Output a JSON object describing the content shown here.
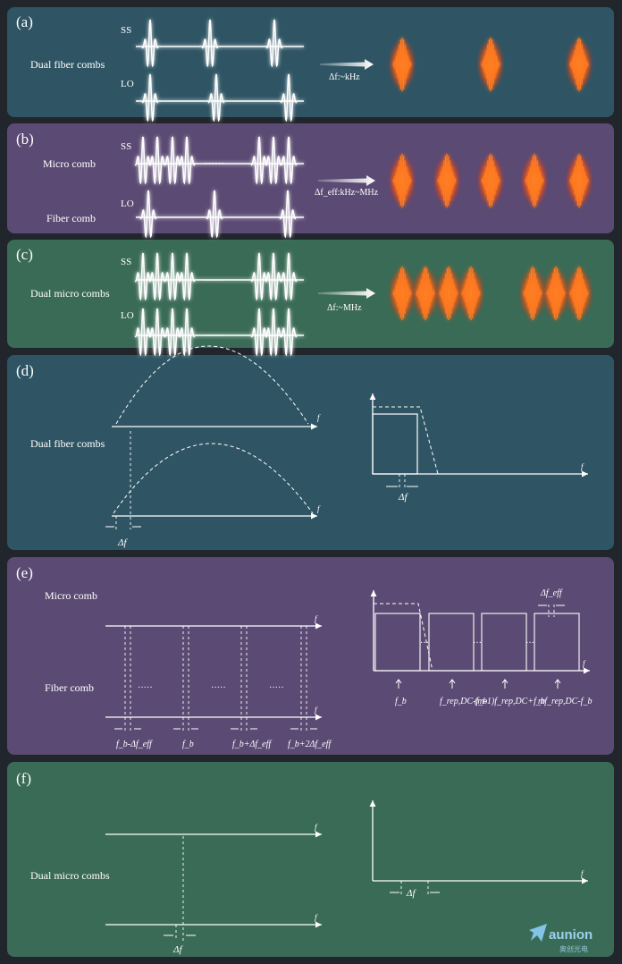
{
  "panels": [
    {
      "id": "a",
      "tag": "(a)",
      "label": "Dual fiber combs",
      "ss": "SS",
      "lo": "LO",
      "arrow_label": "Δf:~kHz",
      "bg": "#2f5564"
    },
    {
      "id": "b",
      "tag": "(b)",
      "label_top": "Micro comb",
      "label_bottom": "Fiber comb",
      "ss": "SS",
      "lo": "LO",
      "dots": "……",
      "arrow_label": "Δf_eff:kHz~MHz",
      "bg": "#5b4a73"
    },
    {
      "id": "c",
      "tag": "(c)",
      "label": "Dual micro combs",
      "ss": "SS",
      "lo": "LO",
      "dots": "……",
      "arrow_label": "Δf:~MHz",
      "bg": "#3a6b56"
    },
    {
      "id": "d",
      "tag": "(d)",
      "label": "Dual fiber combs",
      "axis": "f",
      "delta": "Δf",
      "bg": "#2f5564"
    },
    {
      "id": "e",
      "tag": "(e)",
      "label_top": "Micro comb",
      "label_bottom": "Fiber comb",
      "axis": "f",
      "delta_eff": "Δf_eff",
      "bg": "#5b4a73",
      "bottom_labels": [
        "f_b-Δf_eff",
        "f_b",
        "f_b+Δf_eff",
        "f_b+2Δf_eff"
      ],
      "right_labels": [
        "f_b",
        "f_rep,DC-f_b",
        "(m-1)f_rep,DC+f_b",
        "mf_rep,DC-f_b"
      ]
    },
    {
      "id": "f",
      "tag": "(f)",
      "label": "Dual micro combs",
      "axis": "f",
      "delta": "Δf",
      "bg": "#3a6b56"
    }
  ],
  "watermark": {
    "brand": "aunion",
    "sub": "奥创光电"
  },
  "colors": {
    "pulse": "#ffffff",
    "beat": "#ff4a10",
    "axis": "#ffffff"
  }
}
